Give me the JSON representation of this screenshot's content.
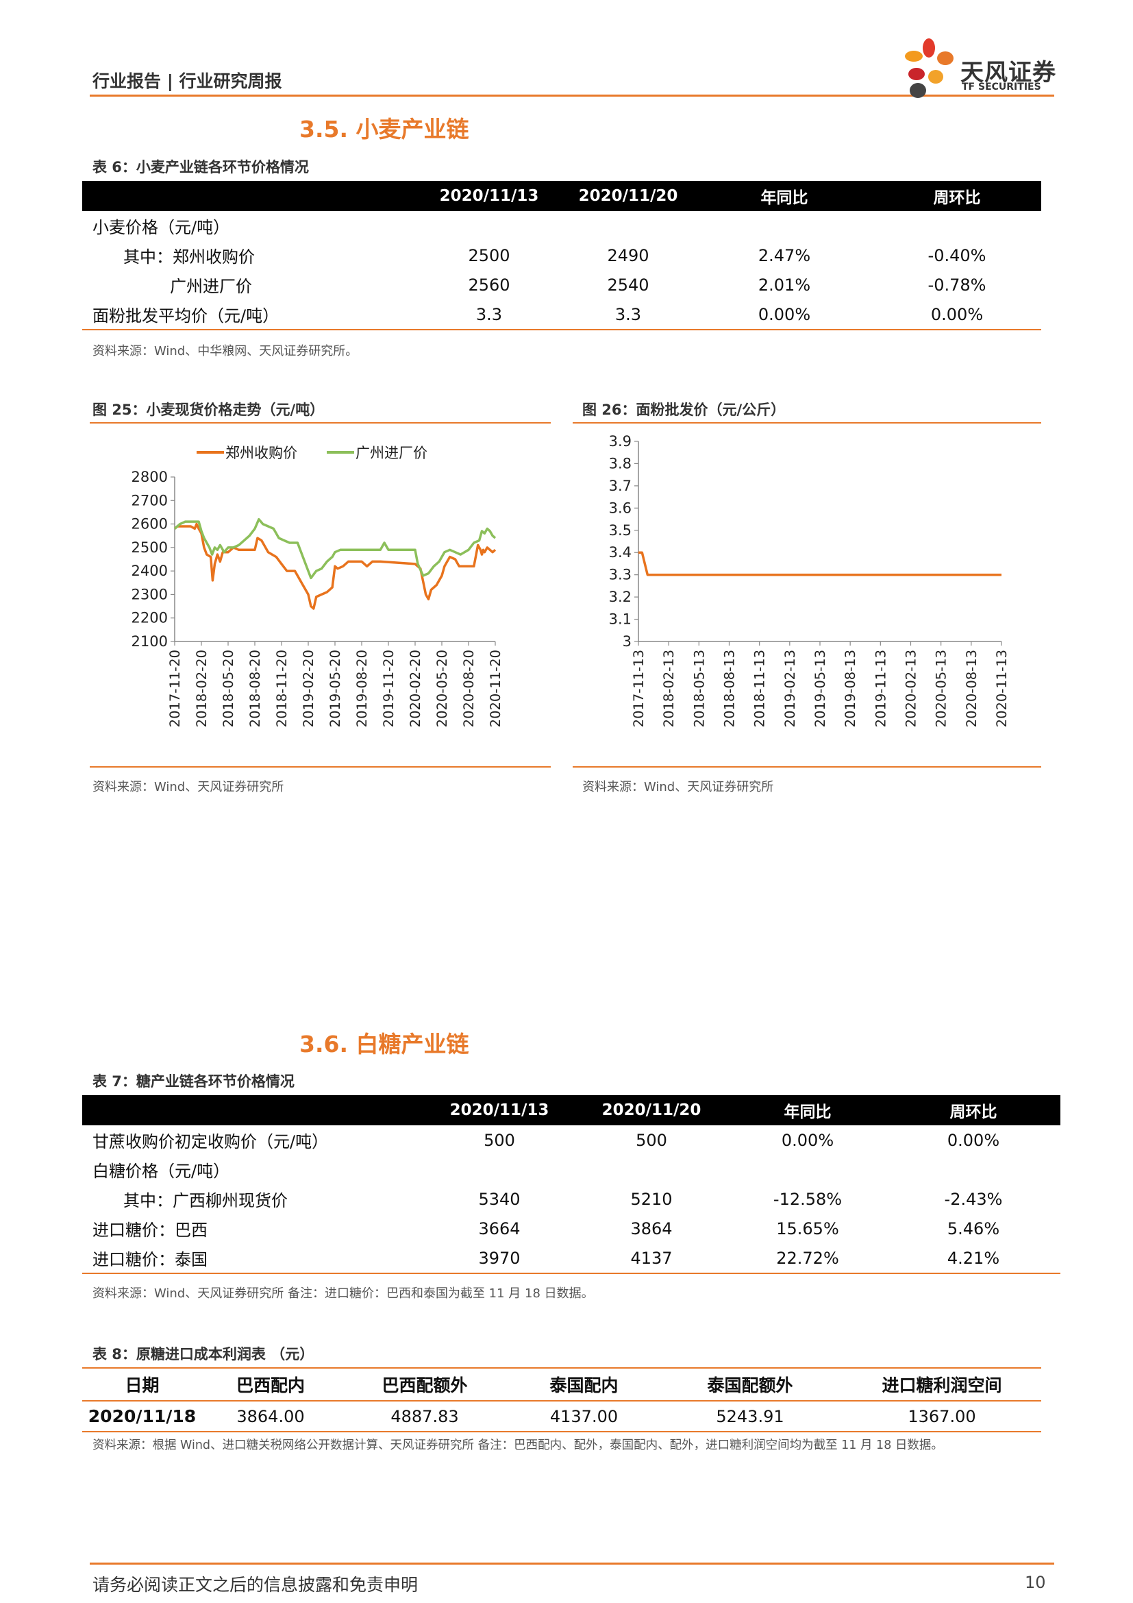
{
  "header": {
    "title": "行业报告 | 行业研究周报",
    "logo_cn": "天风证券",
    "logo_en": "TF SECURITIES"
  },
  "section35": {
    "title": "3.5. 小麦产业链"
  },
  "table6": {
    "caption": "表 6：小麦产业链各环节价格情况",
    "headers": [
      "",
      "2020/11/13",
      "2020/11/20",
      "年同比",
      "周环比"
    ],
    "rows": [
      [
        "小麦价格（元/吨）",
        "",
        "",
        "",
        ""
      ],
      [
        "其中：郑州收购价",
        "2500",
        "2490",
        "2.47%",
        "-0.40%"
      ],
      [
        "广州进厂价",
        "2560",
        "2540",
        "2.01%",
        "-0.78%"
      ],
      [
        "面粉批发平均价（元/吨）",
        "3.3",
        "3.3",
        "0.00%",
        "0.00%"
      ]
    ],
    "source": "资料来源：Wind、中华粮网、天风证券研究所。"
  },
  "fig25": {
    "caption": "图 25：小麦现货价格走势（元/吨）",
    "source": "资料来源：Wind、天风证券研究所"
  },
  "fig26": {
    "caption": "图 26：面粉批发价（元/公斤）",
    "source": "资料来源：Wind、天风证券研究所"
  },
  "chart_data": [
    {
      "type": "line",
      "ylim": [
        2100,
        2800
      ],
      "yticks": [
        "2800",
        "2700",
        "2600",
        "2500",
        "2400",
        "2300",
        "2200",
        "2100"
      ],
      "xticks": [
        "2017-11-20",
        "2018-02-20",
        "2018-05-20",
        "2018-08-20",
        "2018-11-20",
        "2019-02-20",
        "2019-05-20",
        "2019-08-20",
        "2019-11-20",
        "2020-02-20",
        "2020-05-20",
        "2020-08-20",
        "2020-11-20"
      ],
      "legend": "top",
      "colors": [
        "#e8731d",
        "#8cbf5a"
      ],
      "series": [
        {
          "name": "郑州收购价",
          "values": [
            [
              0,
              2580
            ],
            [
              0.1,
              2590
            ],
            [
              0.2,
              2590
            ],
            [
              0.4,
              2590
            ],
            [
              0.6,
              2590
            ],
            [
              0.75,
              2580
            ],
            [
              0.82,
              2600
            ],
            [
              0.9,
              2580
            ],
            [
              1.0,
              2560
            ],
            [
              1.1,
              2500
            ],
            [
              1.2,
              2470
            ],
            [
              1.35,
              2460
            ],
            [
              1.42,
              2360
            ],
            [
              1.5,
              2430
            ],
            [
              1.6,
              2470
            ],
            [
              1.7,
              2440
            ],
            [
              1.8,
              2480
            ],
            [
              2.0,
              2480
            ],
            [
              2.2,
              2500
            ],
            [
              2.4,
              2490
            ],
            [
              2.6,
              2490
            ],
            [
              3.0,
              2490
            ],
            [
              3.1,
              2540
            ],
            [
              3.25,
              2530
            ],
            [
              3.5,
              2480
            ],
            [
              3.8,
              2460
            ],
            [
              4.0,
              2430
            ],
            [
              4.2,
              2400
            ],
            [
              4.5,
              2400
            ],
            [
              4.8,
              2340
            ],
            [
              5.0,
              2300
            ],
            [
              5.1,
              2250
            ],
            [
              5.2,
              2240
            ],
            [
              5.3,
              2290
            ],
            [
              5.5,
              2300
            ],
            [
              5.7,
              2310
            ],
            [
              5.9,
              2330
            ],
            [
              6.0,
              2420
            ],
            [
              6.1,
              2410
            ],
            [
              6.3,
              2420
            ],
            [
              6.5,
              2440
            ],
            [
              7.0,
              2440
            ],
            [
              7.2,
              2420
            ],
            [
              7.4,
              2440
            ],
            [
              7.7,
              2440
            ],
            [
              9.0,
              2430
            ],
            [
              9.2,
              2410
            ],
            [
              9.4,
              2300
            ],
            [
              9.5,
              2280
            ],
            [
              9.6,
              2320
            ],
            [
              9.8,
              2340
            ],
            [
              10.0,
              2380
            ],
            [
              10.1,
              2420
            ],
            [
              10.2,
              2440
            ],
            [
              10.3,
              2460
            ],
            [
              10.5,
              2450
            ],
            [
              10.65,
              2420
            ],
            [
              11.2,
              2420
            ],
            [
              11.35,
              2510
            ],
            [
              11.45,
              2490
            ],
            [
              11.5,
              2470
            ],
            [
              11.55,
              2490
            ],
            [
              11.6,
              2480
            ],
            [
              11.7,
              2500
            ],
            [
              11.8,
              2490
            ],
            [
              11.9,
              2480
            ],
            [
              12.0,
              2490
            ]
          ]
        },
        {
          "name": "广州进厂价",
          "values": [
            [
              0,
              2580
            ],
            [
              0.2,
              2600
            ],
            [
              0.4,
              2610
            ],
            [
              0.7,
              2610
            ],
            [
              0.9,
              2610
            ],
            [
              1.0,
              2570
            ],
            [
              1.1,
              2540
            ],
            [
              1.3,
              2500
            ],
            [
              1.4,
              2470
            ],
            [
              1.5,
              2500
            ],
            [
              1.6,
              2490
            ],
            [
              1.7,
              2510
            ],
            [
              1.85,
              2480
            ],
            [
              2.0,
              2500
            ],
            [
              2.2,
              2500
            ],
            [
              2.4,
              2510
            ],
            [
              2.6,
              2530
            ],
            [
              2.8,
              2550
            ],
            [
              3.0,
              2580
            ],
            [
              3.15,
              2620
            ],
            [
              3.3,
              2600
            ],
            [
              3.5,
              2590
            ],
            [
              3.7,
              2580
            ],
            [
              3.9,
              2540
            ],
            [
              4.1,
              2530
            ],
            [
              4.3,
              2520
            ],
            [
              4.6,
              2520
            ],
            [
              4.8,
              2460
            ],
            [
              5.0,
              2400
            ],
            [
              5.1,
              2370
            ],
            [
              5.3,
              2400
            ],
            [
              5.5,
              2410
            ],
            [
              5.7,
              2440
            ],
            [
              5.9,
              2460
            ],
            [
              6.0,
              2480
            ],
            [
              6.2,
              2490
            ],
            [
              6.5,
              2490
            ],
            [
              7.0,
              2490
            ],
            [
              7.2,
              2490
            ],
            [
              7.4,
              2490
            ],
            [
              7.7,
              2490
            ],
            [
              7.85,
              2520
            ],
            [
              8.0,
              2490
            ],
            [
              8.5,
              2490
            ],
            [
              9.0,
              2490
            ],
            [
              9.1,
              2430
            ],
            [
              9.3,
              2380
            ],
            [
              9.5,
              2390
            ],
            [
              9.7,
              2420
            ],
            [
              9.9,
              2440
            ],
            [
              10.1,
              2480
            ],
            [
              10.3,
              2490
            ],
            [
              10.5,
              2480
            ],
            [
              10.7,
              2470
            ],
            [
              11.0,
              2490
            ],
            [
              11.2,
              2520
            ],
            [
              11.4,
              2530
            ],
            [
              11.5,
              2570
            ],
            [
              11.6,
              2560
            ],
            [
              11.7,
              2580
            ],
            [
              11.8,
              2570
            ],
            [
              11.9,
              2550
            ],
            [
              12.0,
              2540
            ]
          ]
        }
      ]
    },
    {
      "type": "line",
      "ylim": [
        3,
        3.9
      ],
      "yticks": [
        "3.9",
        "3.8",
        "3.7",
        "3.6",
        "3.5",
        "3.4",
        "3.3",
        "3.2",
        "3.1",
        "3"
      ],
      "xticks": [
        "2017-11-13",
        "2018-02-13",
        "2018-05-13",
        "2018-08-13",
        "2018-11-13",
        "2019-02-13",
        "2019-05-13",
        "2019-08-13",
        "2019-11-13",
        "2020-02-13",
        "2020-05-13",
        "2020-08-13",
        "2020-11-13"
      ],
      "colors": [
        "#e8731d"
      ],
      "series": [
        {
          "values": [
            [
              0,
              3.4
            ],
            [
              0.12,
              3.4
            ],
            [
              0.3,
              3.3
            ],
            [
              12,
              3.3
            ]
          ]
        }
      ]
    }
  ],
  "section36": {
    "title": "3.6. 白糖产业链"
  },
  "table7": {
    "caption": "表 7：糖产业链各环节价格情况",
    "headers": [
      "",
      "2020/11/13",
      "2020/11/20",
      "年同比",
      "周环比"
    ],
    "rows": [
      [
        "甘蔗收购价初定收购价（元/吨）",
        "500",
        "500",
        "0.00%",
        "0.00%"
      ],
      [
        "白糖价格（元/吨）",
        "",
        "",
        "",
        ""
      ],
      [
        "其中：广西柳州现货价",
        "5340",
        "5210",
        "-12.58%",
        "-2.43%"
      ],
      [
        "进口糖价：巴西",
        "3664",
        "3864",
        "15.65%",
        "5.46%"
      ],
      [
        "进口糖价：泰国",
        "3970",
        "4137",
        "22.72%",
        "4.21%"
      ]
    ],
    "source": "资料来源：Wind、天风证券研究所 备注：进口糖价：巴西和泰国为截至 11 月 18 日数据。"
  },
  "table8": {
    "caption": "表 8：原糖进口成本利润表 （元）",
    "headers": [
      "日期",
      "巴西配内",
      "巴西配额外",
      "泰国配内",
      "泰国配额外",
      "进口糖利润空间"
    ],
    "rows": [
      [
        "2020/11/18",
        "3864.00",
        "4887.83",
        "4137.00",
        "5243.91",
        "1367.00"
      ]
    ],
    "source": "资料来源：根据 Wind、进口糖关税网络公开数据计算、天风证券研究所 备注：巴西配内、配外，泰国配内、配外，进口糖利润空间均为截至 11 月 18 日数据。"
  },
  "footer": {
    "disclaimer": "请务必阅读正文之后的信息披露和免责申明",
    "page": "10"
  }
}
